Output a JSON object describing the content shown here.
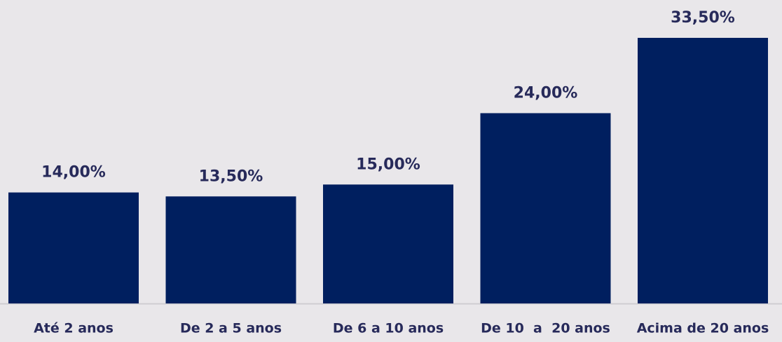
{
  "chart_data": {
    "type": "bar",
    "categories": [
      "Até 2 anos",
      "De 2 a 5 anos",
      "De 6 a 10 anos",
      "De 10  a  20 anos",
      "Acima de 20 anos"
    ],
    "values": [
      14,
      13.5,
      15,
      24,
      33.5
    ],
    "value_labels": [
      "14,00%",
      "13,50%",
      "15,00%",
      "24,00%",
      "33,50%"
    ],
    "color": "#001f5f"
  }
}
